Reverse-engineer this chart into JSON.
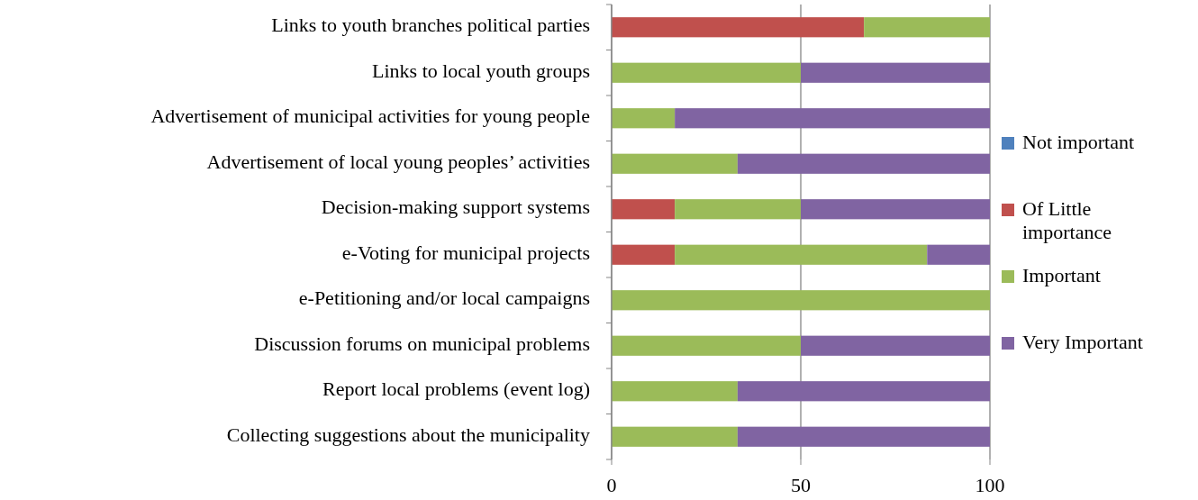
{
  "chart_data": {
    "type": "bar",
    "orientation": "horizontal",
    "stacked": true,
    "categories": [
      "Links to youth branches  political parties",
      "Links to local youth groups",
      "Advertisement of municipal activities for young people",
      "Advertisement of local young peoples’ activities",
      "Decision-making support systems",
      "e-Voting for municipal projects",
      "e-Petitioning and/or local campaigns",
      "Discussion forums on municipal problems",
      "Report local problems (event log)",
      "Collecting suggestions about the municipality"
    ],
    "series": [
      {
        "name": "Not important",
        "color": "#4f81bd",
        "values": [
          0,
          0,
          0,
          0,
          0,
          0,
          0,
          0,
          0,
          0
        ]
      },
      {
        "name": "Of Little importance",
        "color": "#c0504d",
        "values": [
          66.7,
          0,
          0,
          0,
          16.7,
          16.7,
          0,
          0,
          0,
          0
        ]
      },
      {
        "name": "Important",
        "color": "#9bbb59",
        "values": [
          33.3,
          50,
          16.7,
          33.3,
          33.3,
          66.7,
          100,
          50,
          33.3,
          33.3
        ]
      },
      {
        "name": "Very Important",
        "color": "#8064a2",
        "values": [
          0,
          50,
          83.3,
          66.7,
          50,
          16.6,
          0,
          50,
          66.7,
          66.7
        ]
      }
    ],
    "xlim": [
      0,
      100
    ],
    "xticks": [
      0,
      50,
      100
    ],
    "grid": "x",
    "legend": "right"
  }
}
